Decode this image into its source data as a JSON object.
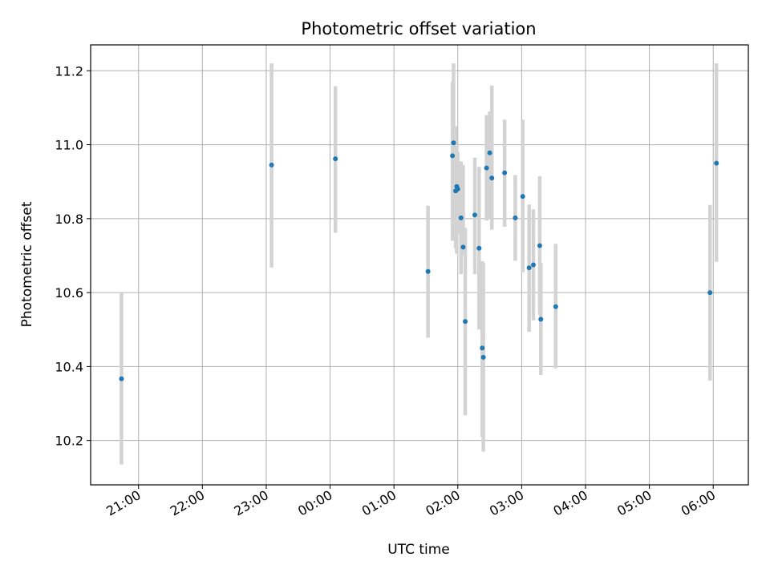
{
  "chart_data": {
    "type": "scatter",
    "title": "Photometric offset variation",
    "xlabel": "UTC time",
    "ylabel": "Photometric offset",
    "xlim": [
      "2023-01-01T20:15",
      "2023-01-02T06:33"
    ],
    "ylim": [
      10.08,
      11.27
    ],
    "x_ticks": [
      {
        "t": "2023-01-01T21:00",
        "label": "21:00"
      },
      {
        "t": "2023-01-01T22:00",
        "label": "22:00"
      },
      {
        "t": "2023-01-01T23:00",
        "label": "23:00"
      },
      {
        "t": "2023-01-02T00:00",
        "label": "00:00"
      },
      {
        "t": "2023-01-02T01:00",
        "label": "01:00"
      },
      {
        "t": "2023-01-02T02:00",
        "label": "02:00"
      },
      {
        "t": "2023-01-02T03:00",
        "label": "03:00"
      },
      {
        "t": "2023-01-02T04:00",
        "label": "04:00"
      },
      {
        "t": "2023-01-02T05:00",
        "label": "05:00"
      },
      {
        "t": "2023-01-02T06:00",
        "label": "06:00"
      }
    ],
    "y_ticks": [
      {
        "v": 10.2,
        "label": "10.2"
      },
      {
        "v": 10.4,
        "label": "10.4"
      },
      {
        "v": 10.6,
        "label": "10.6"
      },
      {
        "v": 10.8,
        "label": "10.8"
      },
      {
        "v": 11.0,
        "label": "11.0"
      },
      {
        "v": 11.2,
        "label": "11.2"
      }
    ],
    "grid": true,
    "point_color": "#1f77b4",
    "errorbar_color": "#d3d3d3",
    "points": [
      {
        "t": "2023-01-01T20:44",
        "y": 10.367,
        "lo": 10.135,
        "hi": 10.6
      },
      {
        "t": "2023-01-01T23:05",
        "y": 10.945,
        "lo": 10.668,
        "hi": 11.22
      },
      {
        "t": "2023-01-02T00:05",
        "y": 10.962,
        "lo": 10.762,
        "hi": 11.158
      },
      {
        "t": "2023-01-02T01:32",
        "y": 10.657,
        "lo": 10.478,
        "hi": 10.835
      },
      {
        "t": "2023-01-02T01:55",
        "y": 10.97,
        "lo": 10.74,
        "hi": 11.17
      },
      {
        "t": "2023-01-02T01:56",
        "y": 11.005,
        "lo": 10.79,
        "hi": 11.22
      },
      {
        "t": "2023-01-02T01:58",
        "y": 10.875,
        "lo": 10.72,
        "hi": 11.05
      },
      {
        "t": "2023-01-02T01:59",
        "y": 10.887,
        "lo": 10.705,
        "hi": 11.0
      },
      {
        "t": "2023-01-02T02:00",
        "y": 10.88,
        "lo": 10.76,
        "hi": 10.98
      },
      {
        "t": "2023-01-02T02:03",
        "y": 10.802,
        "lo": 10.65,
        "hi": 10.955
      },
      {
        "t": "2023-01-02T02:05",
        "y": 10.723,
        "lo": 10.7,
        "hi": 10.945
      },
      {
        "t": "2023-01-02T02:07",
        "y": 10.522,
        "lo": 10.268,
        "hi": 10.775
      },
      {
        "t": "2023-01-02T02:16",
        "y": 10.81,
        "lo": 10.65,
        "hi": 10.965
      },
      {
        "t": "2023-01-02T02:20",
        "y": 10.72,
        "lo": 10.5,
        "hi": 10.94
      },
      {
        "t": "2023-01-02T02:23",
        "y": 10.45,
        "lo": 10.21,
        "hi": 10.685
      },
      {
        "t": "2023-01-02T02:24",
        "y": 10.425,
        "lo": 10.17,
        "hi": 10.68
      },
      {
        "t": "2023-01-02T02:27",
        "y": 10.937,
        "lo": 10.795,
        "hi": 11.08
      },
      {
        "t": "2023-01-02T02:30",
        "y": 10.978,
        "lo": 10.8,
        "hi": 11.09
      },
      {
        "t": "2023-01-02T02:32",
        "y": 10.91,
        "lo": 10.77,
        "hi": 11.16
      },
      {
        "t": "2023-01-02T02:44",
        "y": 10.924,
        "lo": 10.778,
        "hi": 11.068
      },
      {
        "t": "2023-01-02T02:54",
        "y": 10.802,
        "lo": 10.686,
        "hi": 10.918
      },
      {
        "t": "2023-01-02T03:01",
        "y": 10.86,
        "lo": 10.655,
        "hi": 11.068
      },
      {
        "t": "2023-01-02T03:07",
        "y": 10.667,
        "lo": 10.494,
        "hi": 10.838
      },
      {
        "t": "2023-01-02T03:11",
        "y": 10.675,
        "lo": 10.525,
        "hi": 10.825
      },
      {
        "t": "2023-01-02T03:17",
        "y": 10.727,
        "lo": 10.54,
        "hi": 10.915
      },
      {
        "t": "2023-01-02T03:18",
        "y": 10.528,
        "lo": 10.377,
        "hi": 10.68
      },
      {
        "t": "2023-01-02T03:32",
        "y": 10.562,
        "lo": 10.395,
        "hi": 10.732
      },
      {
        "t": "2023-01-02T05:57",
        "y": 10.6,
        "lo": 10.362,
        "hi": 10.837
      },
      {
        "t": "2023-01-02T06:03",
        "y": 10.95,
        "lo": 10.683,
        "hi": 11.22
      }
    ]
  }
}
